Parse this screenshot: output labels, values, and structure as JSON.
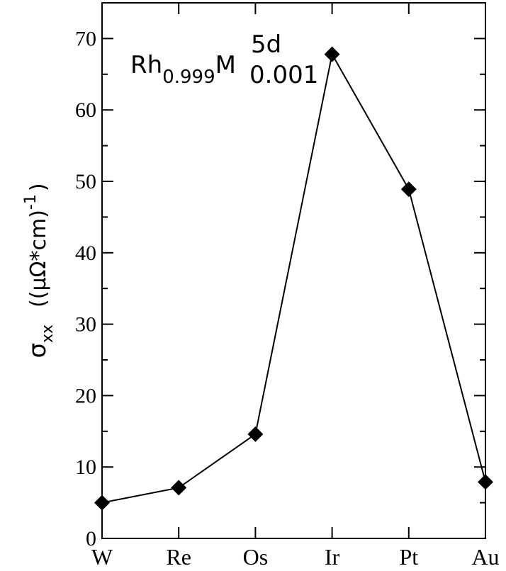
{
  "chart_data": {
    "type": "line",
    "categories": [
      "W",
      "Re",
      "Os",
      "Ir",
      "Pt",
      "Au"
    ],
    "series": [
      {
        "values": [
          5.0,
          7.1,
          14.6,
          67.8,
          48.9,
          7.9
        ]
      }
    ],
    "title": "",
    "xlabel": "",
    "ylabel": {
      "symbol": "σ",
      "subscript": "xx",
      "unit_open": "((μΩ*cm)",
      "unit_sup": "-1",
      "unit_close": ")"
    },
    "ylim": [
      0,
      75
    ],
    "yticks": [
      "0",
      "10",
      "20",
      "30",
      "40",
      "50",
      "60",
      "70"
    ],
    "marker": "diamond",
    "grid": false,
    "annotation": {
      "base": "Rh",
      "base_sub": "0.999",
      "dopant": "M",
      "dopant_sup": "5d",
      "dopant_sub": "0.001"
    }
  }
}
